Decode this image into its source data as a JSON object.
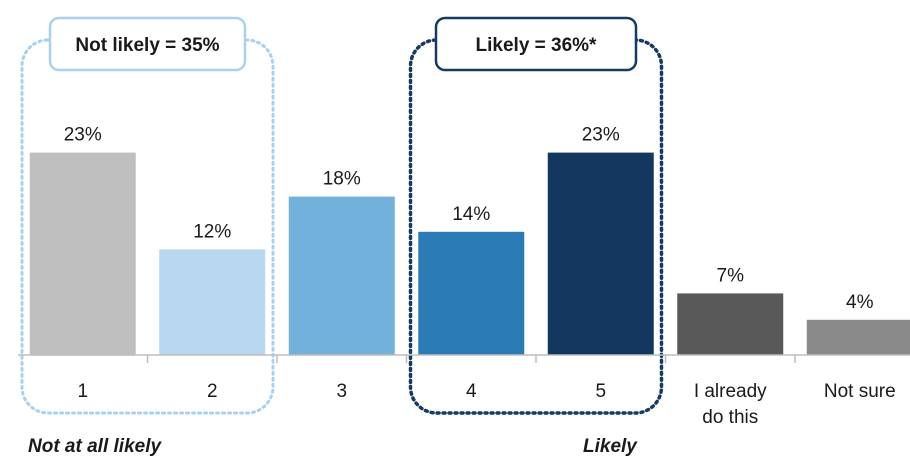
{
  "chart_data": {
    "type": "bar",
    "categories": [
      "1",
      "2",
      "3",
      "4",
      "5",
      "I already do this",
      "Not sure"
    ],
    "category_lines": [
      [
        "1"
      ],
      [
        "2"
      ],
      [
        "3"
      ],
      [
        "4"
      ],
      [
        "5"
      ],
      [
        "I already",
        "do this"
      ],
      [
        "Not sure"
      ]
    ],
    "values": [
      23,
      12,
      18,
      14,
      23,
      7,
      4
    ],
    "data_labels": [
      "23%",
      "12%",
      "18%",
      "14%",
      "23%",
      "7%",
      "4%"
    ],
    "colors": [
      "#bfbfbf",
      "#b9d7ee",
      "#72b1dc",
      "#2b7bb5",
      "#13375f",
      "#595959",
      "#8a8a8a"
    ],
    "ylim": [
      0,
      25
    ],
    "grid": false,
    "groups": [
      {
        "label": "Not likely = 35%",
        "from": 0,
        "to": 1,
        "color": "#a9d0ee"
      },
      {
        "label": "Likely = 36%*",
        "from": 3,
        "to": 4,
        "color": "#163a63"
      }
    ],
    "scale_labels": {
      "left": "Not at all likely",
      "right": "Likely"
    }
  }
}
